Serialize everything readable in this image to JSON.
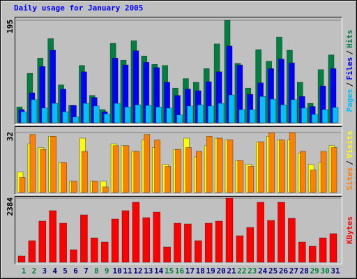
{
  "chart_data": [
    {
      "type": "bar",
      "title": "Daily usage for January 2005",
      "title_color": "#0000ff",
      "ylim": [
        0,
        195
      ],
      "yticks": [
        195
      ],
      "legend_separator": "/",
      "series": [
        {
          "name": "Hits",
          "color": "#008040",
          "values": [
            30,
            94,
            123,
            160,
            72,
            33,
            109,
            52,
            25,
            151,
            119,
            156,
            127,
            111,
            109,
            66,
            84,
            77,
            103,
            150,
            195,
            113,
            66,
            139,
            117,
            163,
            138,
            77,
            37,
            101,
            129
          ]
        },
        {
          "name": "Files",
          "color": "#0000ff",
          "values": [
            25,
            57,
            107,
            138,
            64,
            33,
            97,
            48,
            21,
            123,
            110,
            137,
            115,
            105,
            77,
            52,
            64,
            61,
            78,
            97,
            146,
            110,
            54,
            76,
            103,
            121,
            114,
            50,
            31,
            70,
            103
          ]
        },
        {
          "name": "Pages",
          "color": "#00c0ff",
          "values": [
            21,
            44,
            28,
            37,
            21,
            11,
            37,
            32,
            17,
            37,
            30,
            34,
            33,
            30,
            28,
            15,
            32,
            34,
            32,
            37,
            53,
            25,
            25,
            50,
            45,
            34,
            44,
            28,
            16,
            25,
            29
          ]
        }
      ]
    },
    {
      "type": "bar",
      "ylim": [
        0,
        32
      ],
      "yticks": [
        32
      ],
      "legend_separator": "/",
      "series": [
        {
          "name": "Visits",
          "color": "#ffff00",
          "values": [
            11,
            26,
            24,
            30,
            16,
            6,
            29,
            6,
            6,
            26,
            25,
            22,
            28,
            24,
            15,
            23,
            29,
            19,
            25,
            29,
            28,
            17,
            15,
            27,
            30,
            28,
            28,
            21,
            15,
            16,
            25
          ]
        },
        {
          "name": "Sites",
          "color": "#ff8000",
          "values": [
            8,
            31,
            23,
            30,
            16,
            6,
            22,
            6,
            3,
            25,
            25,
            22,
            31,
            28,
            14,
            23,
            24,
            22,
            30,
            29,
            28,
            17,
            14,
            27,
            32,
            28,
            32,
            22,
            12,
            22,
            24
          ]
        }
      ]
    },
    {
      "type": "bar",
      "ylim": [
        0,
        2384
      ],
      "yticks": [
        2384
      ],
      "categories": [
        "1",
        "2",
        "3",
        "4",
        "5",
        "6",
        "7",
        "8",
        "9",
        "10",
        "11",
        "12",
        "13",
        "14",
        "15",
        "16",
        "17",
        "18",
        "19",
        "20",
        "21",
        "22",
        "23",
        "24",
        "25",
        "26",
        "27",
        "28",
        "29",
        "30",
        "31"
      ],
      "category_colors": [
        "#008040",
        "#008040",
        "#000080",
        "#000080",
        "#000080",
        "#000080",
        "#000080",
        "#008040",
        "#008040",
        "#000080",
        "#000080",
        "#000080",
        "#000080",
        "#000080",
        "#008040",
        "#008040",
        "#000080",
        "#000080",
        "#000080",
        "#000080",
        "#000080",
        "#008040",
        "#008040",
        "#000080",
        "#000080",
        "#000080",
        "#000080",
        "#000080",
        "#008040",
        "#008040",
        "#000080"
      ],
      "series": [
        {
          "name": "KBytes",
          "color": "#ff0000",
          "values": [
            233,
            803,
            1529,
            1918,
            1451,
            466,
            1762,
            907,
            751,
            1607,
            1918,
            2229,
            1658,
            1866,
            570,
            1451,
            1425,
            803,
            1451,
            1529,
            2384,
            985,
            1296,
            2229,
            1555,
            2229,
            1633,
            751,
            596,
            907,
            1063
          ]
        }
      ]
    }
  ]
}
